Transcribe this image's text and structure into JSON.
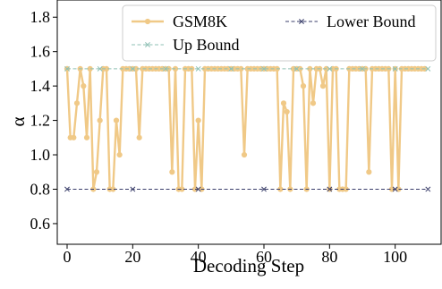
{
  "chart_data": {
    "type": "line",
    "xlabel": "Decoding Step",
    "ylabel": "α",
    "xlim": [
      -3,
      114
    ],
    "ylim": [
      0.48,
      1.9
    ],
    "xticks": [
      0,
      20,
      40,
      60,
      80,
      100
    ],
    "yticks": [
      0.6,
      0.8,
      1.0,
      1.2,
      1.4,
      1.6,
      1.8
    ],
    "xtick_labels": [
      "0",
      "20",
      "40",
      "60",
      "80",
      "100"
    ],
    "ytick_labels": [
      "0.6",
      "0.8",
      "1.0",
      "1.2",
      "1.4",
      "1.6",
      "1.8"
    ],
    "grid": false,
    "legend_position": "top-right",
    "series": [
      {
        "name": "GSM8K",
        "color": "#f0c987",
        "style": "solid",
        "marker": "circle",
        "x": [
          0,
          1,
          2,
          3,
          4,
          5,
          6,
          7,
          8,
          9,
          10,
          11,
          12,
          13,
          14,
          15,
          16,
          17,
          18,
          19,
          20,
          21,
          22,
          23,
          24,
          25,
          26,
          27,
          28,
          29,
          30,
          31,
          32,
          33,
          34,
          35,
          36,
          37,
          38,
          39,
          40,
          41,
          42,
          43,
          44,
          45,
          46,
          47,
          48,
          49,
          50,
          51,
          52,
          53,
          54,
          55,
          56,
          57,
          58,
          59,
          60,
          61,
          62,
          63,
          64,
          65,
          66,
          67,
          68,
          69,
          70,
          71,
          72,
          73,
          74,
          75,
          76,
          77,
          78,
          79,
          80,
          81,
          82,
          83,
          84,
          85,
          86,
          87,
          88,
          89,
          90,
          91,
          92,
          93,
          94,
          95,
          96,
          97,
          98,
          99,
          100,
          101,
          102,
          103,
          104,
          105,
          106,
          107,
          108,
          109
        ],
        "y": [
          1.5,
          1.1,
          1.1,
          1.3,
          1.5,
          1.4,
          1.1,
          1.5,
          0.8,
          0.9,
          1.2,
          1.5,
          1.5,
          0.8,
          0.8,
          1.2,
          1.0,
          1.5,
          1.5,
          1.5,
          1.5,
          1.5,
          1.1,
          1.5,
          1.5,
          1.5,
          1.5,
          1.5,
          1.5,
          1.5,
          1.5,
          1.5,
          0.9,
          1.5,
          0.8,
          0.8,
          1.5,
          1.5,
          1.5,
          0.8,
          1.2,
          0.8,
          1.5,
          1.5,
          1.5,
          1.5,
          1.5,
          1.5,
          1.5,
          1.5,
          1.5,
          1.5,
          1.5,
          1.5,
          1.0,
          1.5,
          1.5,
          1.5,
          1.5,
          1.5,
          1.5,
          1.5,
          1.5,
          1.5,
          1.5,
          0.8,
          1.3,
          1.25,
          0.8,
          1.5,
          1.5,
          1.5,
          1.4,
          0.8,
          1.5,
          1.3,
          1.5,
          1.5,
          1.4,
          1.5,
          0.8,
          1.5,
          1.5,
          0.8,
          0.8,
          0.8,
          1.5,
          1.5,
          1.5,
          1.5,
          1.5,
          1.5,
          0.9,
          1.5,
          1.5,
          1.5,
          1.5,
          1.5,
          1.5,
          0.8,
          1.5,
          0.8,
          1.5,
          1.5,
          1.5,
          1.5,
          1.5,
          1.5,
          1.5,
          1.5
        ]
      },
      {
        "name": "Up Bound",
        "color": "#8fc1b5",
        "style": "dashed",
        "marker": "x",
        "y_constant": 1.5,
        "x_range": [
          0,
          110
        ],
        "marker_x": [
          0,
          10,
          20,
          30,
          40,
          50,
          60,
          70,
          80,
          90,
          100,
          110
        ]
      },
      {
        "name": "Lower Bound",
        "color": "#3b3f6b",
        "style": "dashed",
        "marker": "x",
        "y_constant": 0.8,
        "x_range": [
          0,
          110
        ],
        "marker_x": [
          0,
          20,
          40,
          60,
          80,
          100,
          110
        ]
      }
    ]
  }
}
